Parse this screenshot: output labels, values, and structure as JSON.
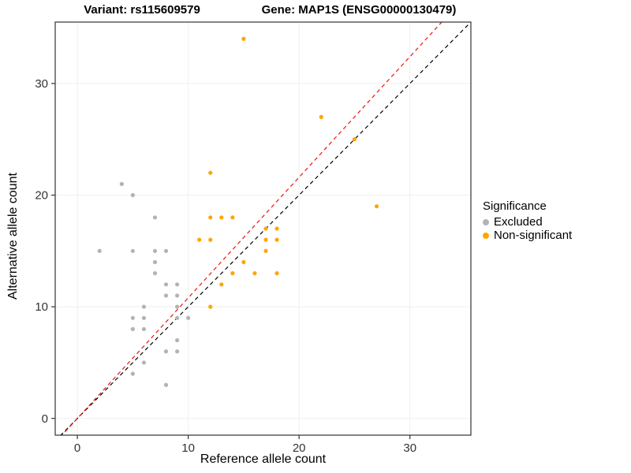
{
  "title": {
    "variant": "Variant: rs115609579",
    "gene": "Gene: MAP1S (ENSG00000130479)"
  },
  "axes": {
    "x_label": "Reference allele count",
    "y_label": "Alternative allele count",
    "x_ticks": [
      0,
      10,
      20,
      30
    ],
    "y_ticks": [
      0,
      10,
      20,
      30
    ]
  },
  "legend": {
    "title": "Significance",
    "items": [
      {
        "label": "Excluded",
        "color": "#b3b3b3"
      },
      {
        "label": "Non-significant",
        "color": "#FFA500"
      }
    ]
  },
  "colors": {
    "panel_border": "#333333",
    "grid": "#efefef",
    "tick": "#333333",
    "tick_label": "#333333",
    "identity_line": "#000000",
    "fit_line": "#EE1111"
  },
  "chart_data": {
    "type": "scatter",
    "title": "Variant: rs115609579 | Gene: MAP1S (ENSG00000130479)",
    "xlabel": "Reference allele count",
    "ylabel": "Alternative allele count",
    "xlim": [
      -2,
      35.5
    ],
    "ylim": [
      -1.5,
      35.5
    ],
    "grid": true,
    "legend_position": "right",
    "series": [
      {
        "name": "Excluded",
        "color": "#b3b3b3",
        "points": [
          [
            2,
            15
          ],
          [
            4,
            21
          ],
          [
            5,
            20
          ],
          [
            7,
            18
          ],
          [
            5,
            15
          ],
          [
            7,
            15
          ],
          [
            8,
            15
          ],
          [
            7,
            14
          ],
          [
            7,
            13
          ],
          [
            8,
            12
          ],
          [
            9,
            12
          ],
          [
            9,
            11
          ],
          [
            8,
            11
          ],
          [
            6,
            10
          ],
          [
            9,
            10
          ],
          [
            5,
            9
          ],
          [
            6,
            9
          ],
          [
            9,
            9
          ],
          [
            10,
            9
          ],
          [
            5,
            8
          ],
          [
            6,
            8
          ],
          [
            9,
            7
          ],
          [
            8,
            6
          ],
          [
            9,
            6
          ],
          [
            6,
            5
          ],
          [
            5,
            4
          ],
          [
            8,
            3
          ]
        ]
      },
      {
        "name": "Non-significant",
        "color": "#FFA500",
        "points": [
          [
            15,
            34
          ],
          [
            22,
            27
          ],
          [
            25,
            25
          ],
          [
            12,
            22
          ],
          [
            27,
            19
          ],
          [
            12,
            18
          ],
          [
            13,
            18
          ],
          [
            14,
            18
          ],
          [
            17,
            17
          ],
          [
            18,
            17
          ],
          [
            11,
            16
          ],
          [
            12,
            16
          ],
          [
            17,
            16
          ],
          [
            18,
            16
          ],
          [
            17,
            15
          ],
          [
            15,
            14
          ],
          [
            14,
            13
          ],
          [
            16,
            13
          ],
          [
            18,
            13
          ],
          [
            13,
            12
          ],
          [
            12,
            10
          ]
        ]
      }
    ],
    "lines": [
      {
        "name": "identity",
        "slope": 1.0,
        "intercept": 0,
        "style": "dashed",
        "color": "#000000"
      },
      {
        "name": "fit",
        "slope": 1.08,
        "intercept": 0,
        "style": "dashed",
        "color": "#EE1111"
      }
    ]
  }
}
